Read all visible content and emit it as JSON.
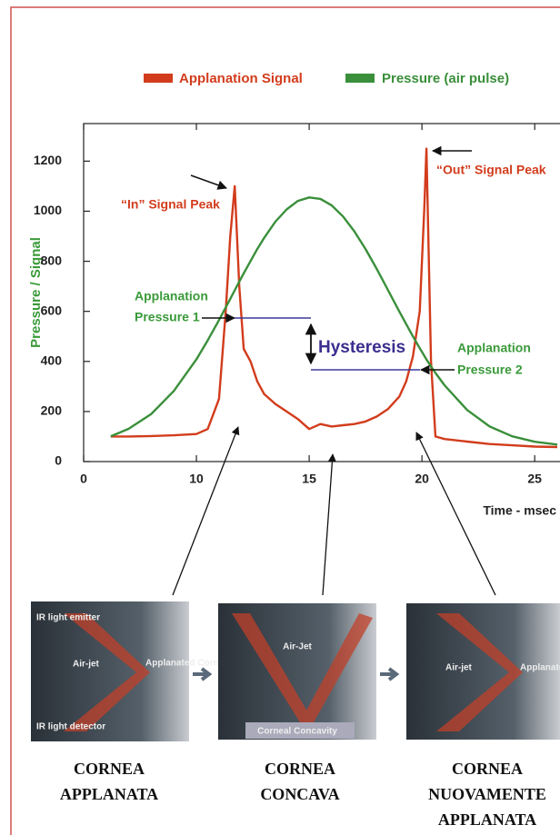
{
  "chart_data": {
    "type": "line",
    "legend": "top",
    "ylabel": "Pressure / Signal",
    "ylabel_color": "#3a9a3a",
    "xlabel": "Time - msec",
    "xlim": [
      0,
      26
    ],
    "xbreak": [
      0,
      5
    ],
    "xticks": [
      0,
      10,
      15,
      20,
      25
    ],
    "ylim": [
      0,
      1350
    ],
    "yticks": [
      0,
      200,
      400,
      600,
      800,
      1000,
      1200
    ],
    "x": [
      6.2,
      7,
      8,
      9,
      10,
      10.5,
      11,
      11.3,
      11.5,
      11.7,
      11.9,
      12.1,
      12.4,
      12.7,
      13,
      13.5,
      14,
      14.5,
      15,
      15.5,
      16,
      16.5,
      17,
      17.5,
      18,
      18.5,
      19,
      19.3,
      19.6,
      19.9,
      20.1,
      20.2,
      20.4,
      20.6,
      21,
      22,
      23,
      24,
      25,
      26
    ],
    "series": [
      {
        "name": "Applanation Signal",
        "color": "#d23c1c",
        "values": [
          100,
          100,
          102,
          105,
          110,
          130,
          250,
          600,
          900,
          1100,
          700,
          450,
          400,
          320,
          270,
          230,
          200,
          170,
          130,
          150,
          140,
          145,
          150,
          160,
          180,
          210,
          260,
          320,
          420,
          600,
          1000,
          1250,
          400,
          100,
          90,
          80,
          70,
          65,
          60,
          58
        ]
      },
      {
        "name": "Pressure (air pulse)",
        "color": "#3a8f3a",
        "values": [
          101,
          131,
          190,
          282,
          408,
          484,
          565,
          616,
          650,
          684,
          719,
          752,
          801,
          849,
          893,
          958,
          1007,
          1041,
          1055,
          1049,
          1023,
          979,
          920,
          849,
          769,
          684,
          599,
          549,
          500,
          453,
          423,
          408,
          380,
          354,
          305,
          206,
          140,
          101,
          79,
          68
        ]
      }
    ],
    "annotations": {
      "in_peak": "“In” Signal Peak",
      "out_peak": "“Out” Signal Peak",
      "pressure1": [
        "Applanation",
        "Pressure 1"
      ],
      "pressure2": [
        "Applanation",
        "Pressure 2"
      ],
      "hysteresis": "Hysteresis"
    }
  },
  "panels": [
    {
      "labels": [
        "IR light emitter",
        "Air-jet",
        "Applanated Cornea",
        "IR light detector"
      ],
      "caption": [
        "CORNEA",
        "APPLANATA"
      ]
    },
    {
      "labels": [
        "Air-Jet",
        "Corneal Concavity"
      ],
      "caption": [
        "CORNEA",
        "CONCAVA"
      ]
    },
    {
      "labels": [
        "Air-jet",
        "Applanated Cornea"
      ],
      "caption": [
        "CORNEA",
        "NUOVAMENTE",
        "APPLANATA"
      ]
    }
  ]
}
